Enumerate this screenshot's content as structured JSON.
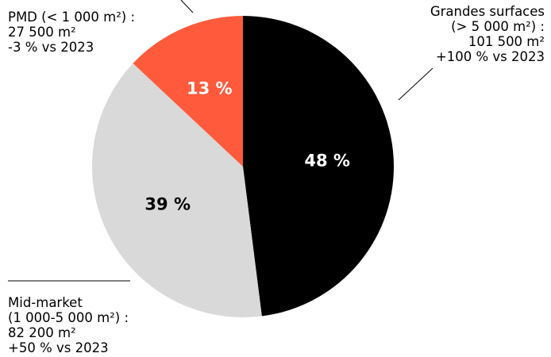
{
  "chart_data": {
    "type": "pie",
    "title": "",
    "slices": [
      {
        "label_lines": [
          "Grandes surfaces",
          "(> 5 000  m²) :",
          "101 500 m²",
          "+100 % vs 2023"
        ],
        "value": 48,
        "pct_label": "48 %",
        "color": "#000000",
        "text_color": "#ffffff"
      },
      {
        "label_lines": [
          "Mid-market",
          "(1 000-5 000 m²) :",
          "82 200 m²",
          "+50 % vs 2023"
        ],
        "value": 39,
        "pct_label": "39 %",
        "color": "#d9d9d9",
        "text_color": "#000000"
      },
      {
        "label_lines": [
          "PMD (< 1 000 m²) :",
          "27 500 m²",
          "-3 % vs 2023"
        ],
        "value": 13,
        "pct_label": "13 %",
        "color": "#ff5a3c",
        "text_color": "#ffffff"
      }
    ]
  }
}
